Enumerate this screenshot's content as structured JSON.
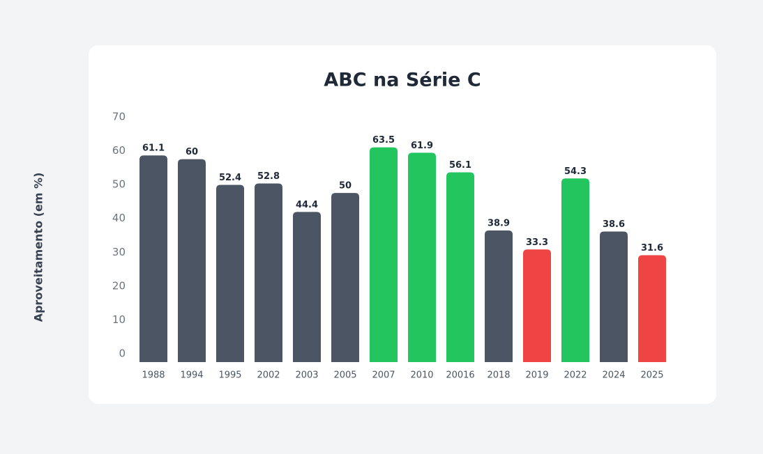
{
  "chart_data": {
    "type": "bar",
    "title": "ABC na Série C",
    "y_label": "Aproveitamento (em %)",
    "categories": [
      "1988",
      "1994",
      "1995",
      "2002",
      "2003",
      "2005",
      "2007",
      "2010",
      "20016",
      "2018",
      "2019",
      "2022",
      "2024",
      "2025"
    ],
    "values": [
      61.1,
      60,
      52.4,
      52.8,
      44.4,
      50,
      63.5,
      61.9,
      56.1,
      38.9,
      33.3,
      54.3,
      38.6,
      31.6
    ],
    "colors": [
      "#4b5563",
      "#4b5563",
      "#4b5563",
      "#4b5563",
      "#4b5563",
      "#4b5563",
      "#22c55e",
      "#22c55e",
      "#22c55e",
      "#4b5563",
      "#ef4444",
      "#22c55e",
      "#4b5563",
      "#ef4444"
    ],
    "ylim": [
      0,
      70
    ],
    "yticks": [
      0,
      10,
      20,
      30,
      40,
      50,
      60,
      70
    ],
    "grid": false
  }
}
